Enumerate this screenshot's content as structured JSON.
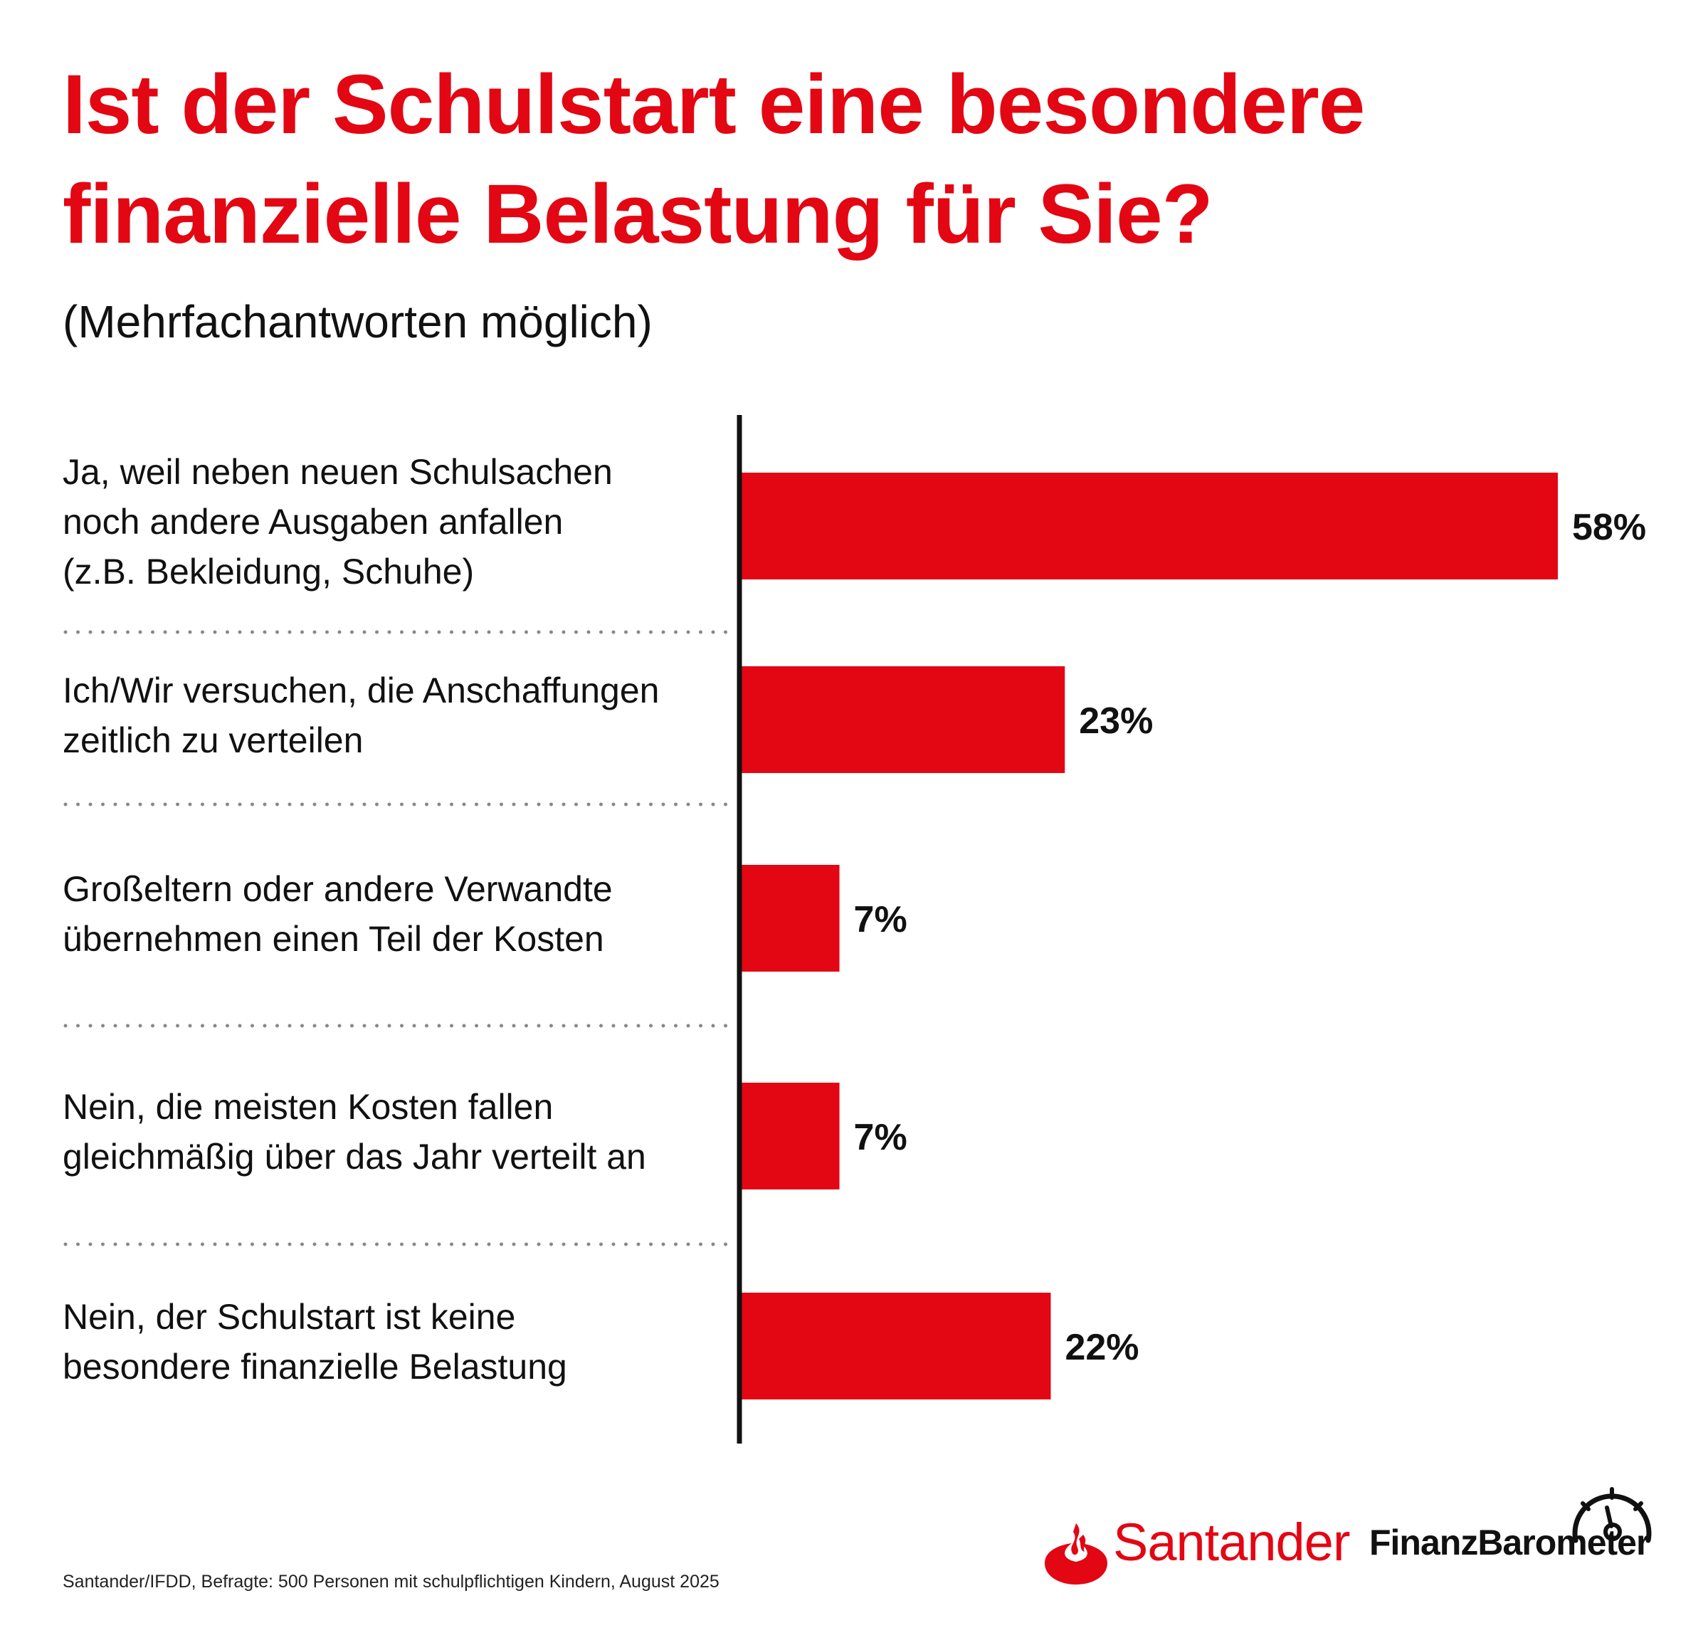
{
  "title_lines": [
    "Ist der Schulstart eine besondere",
    "finanzielle Belastung für Sie?"
  ],
  "subtitle": "(Mehrfachantworten möglich)",
  "chart_data": {
    "type": "bar",
    "orientation": "horizontal",
    "title": "Ist der Schulstart eine besondere finanzielle Belastung für Sie?",
    "subtitle": "(Mehrfachantworten möglich)",
    "unit": "%",
    "grid": false,
    "categories": [
      [
        "Ja, weil neben neuen Schulsachen",
        "noch andere Ausgaben anfallen",
        "(z.B. Bekleidung, Schuhe)"
      ],
      [
        "Ich/Wir versuchen, die Anschaffungen",
        "zeitlich zu verteilen"
      ],
      [
        "Großeltern oder andere Verwandte",
        "übernehmen einen Teil der Kosten"
      ],
      [
        "Nein, die meisten Kosten fallen",
        "gleichmäßig über das Jahr verteilt an"
      ],
      [
        "Nein, der Schulstart ist keine",
        "besondere finanzielle Belastung"
      ]
    ],
    "values": [
      58,
      23,
      7,
      7,
      22
    ],
    "value_labels": [
      "58%",
      "23%",
      "7%",
      "7%",
      "22%"
    ],
    "xlim": [
      0,
      58
    ],
    "bar_color": "#e30613"
  },
  "footer": {
    "source": "Santander/IFDD, Befragte: 500 Personen mit schulpflichtigen Kindern, August 2025",
    "brand_name": "Santander",
    "product_name": "FinanzBarometer",
    "logo_icon": "santander-flame-icon",
    "gauge_icon": "speedometer-icon",
    "brand_color": "#e30613"
  }
}
